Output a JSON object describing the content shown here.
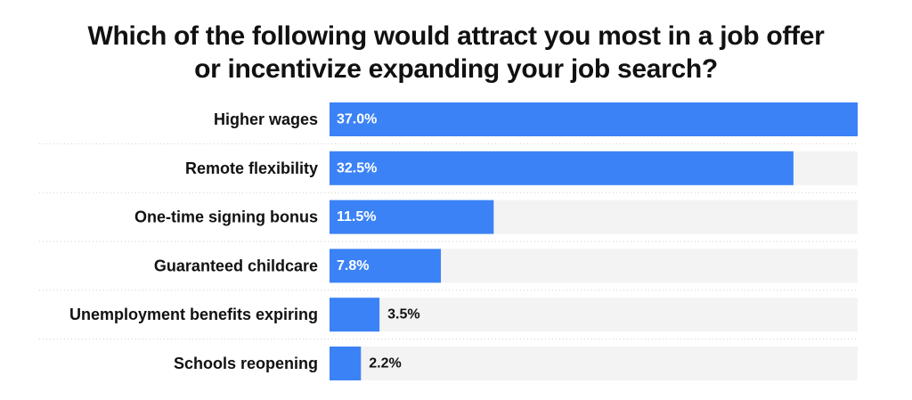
{
  "chart_data": {
    "type": "bar",
    "orientation": "horizontal",
    "title_lines": [
      "Which of the following would attract you most in a job offer",
      "or incentivize expanding your job search?"
    ],
    "categories": [
      "Higher wages",
      "Remote flexibility",
      "One-time signing bonus",
      "Guaranteed childcare",
      "Unemployment benefits expiring",
      "Schools reopening"
    ],
    "values": [
      37.0,
      32.5,
      11.5,
      7.8,
      3.5,
      2.2
    ],
    "value_labels": [
      "37.0%",
      "32.5%",
      "11.5%",
      "7.8%",
      "3.5%",
      "2.2%"
    ],
    "xlim": [
      0,
      37.0
    ],
    "bar_color": "#3b82f6",
    "track_color": "#f3f3f3",
    "grid": false,
    "legend": "none"
  }
}
